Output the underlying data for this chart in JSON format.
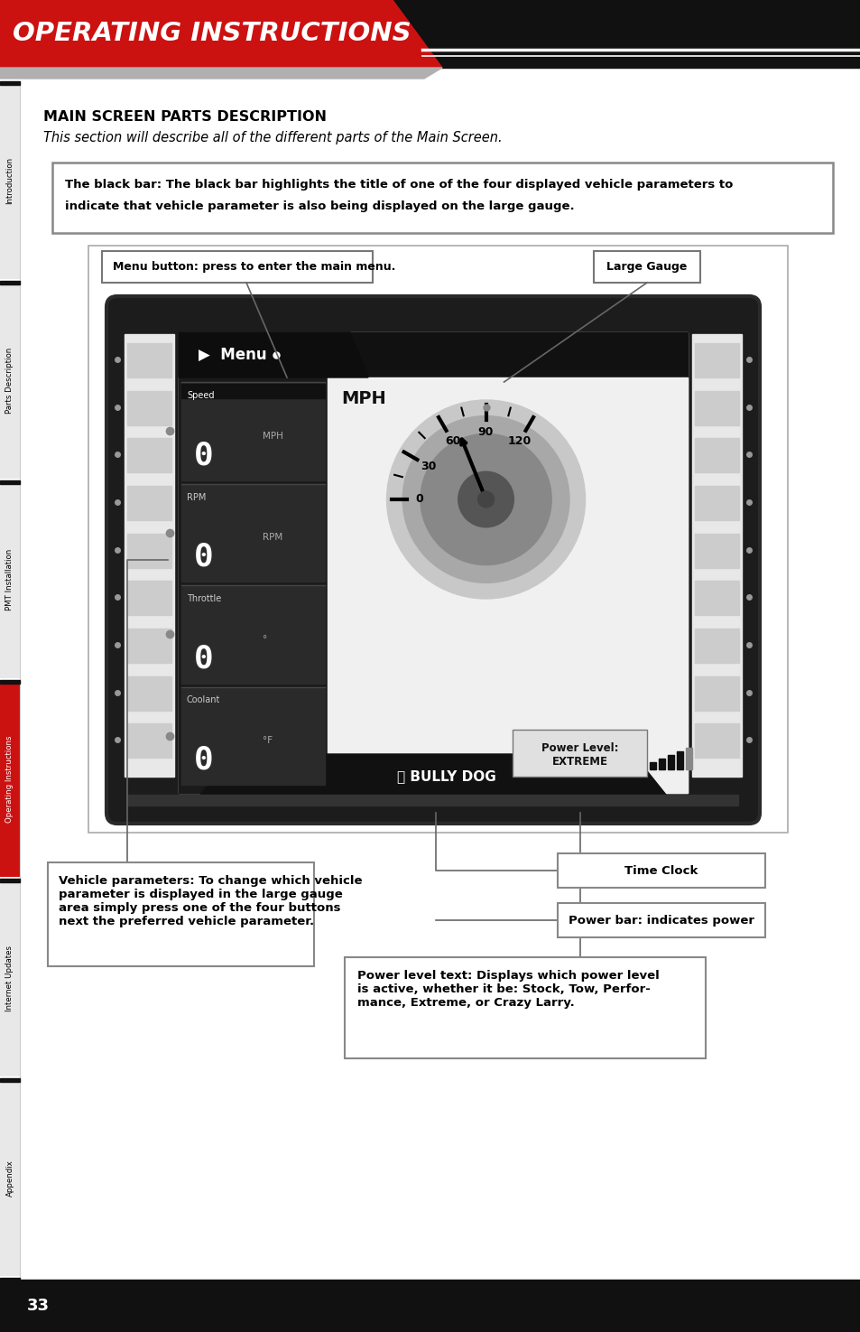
{
  "page_bg": "#ffffff",
  "header_red": "#cc1111",
  "header_black": "#111111",
  "header_text": "OPERATING INSTRUCTIONS",
  "sidebar_labels": [
    "Introduction",
    "Parts Description",
    "PMT Installation",
    "Operating Instructions",
    "Internet Updates",
    "Appendix"
  ],
  "sidebar_active": 3,
  "section_title": "MAIN SCREEN PARTS DESCRIPTION",
  "section_subtitle": "This section will describe all of the different parts of the Main Screen.",
  "black_bar_line1": "The black bar: The black bar highlights the title of one of the four displayed vehicle parameters to",
  "black_bar_line2": "indicate that vehicle parameter is also being displayed on the large gauge.",
  "menu_btn_text": "Menu button: press to enter the main menu.",
  "large_gauge_text": "Large Gauge",
  "vehicle_params_text": "Vehicle parameters: To change which vehicle\nparameter is displayed in the large gauge\narea simply press one of the four buttons\nnext the preferred vehicle parameter.",
  "time_clock_text": "Time Clock",
  "power_bar_text": "Power bar: indicates power",
  "power_level_text": "Power level text: Displays which power level\nis active, whether it be: Stock, Tow, Perfor-\nmance, Extreme, or Crazy Larry.",
  "page_number": "33",
  "footer_bg": "#111111",
  "footer_text_color": "#ffffff",
  "gauge_ticks": [
    [
      180,
      "0"
    ],
    [
      150,
      "30"
    ],
    [
      120,
      "60"
    ],
    [
      90,
      "90"
    ],
    [
      60,
      "120"
    ]
  ],
  "small_params": [
    [
      "Speed",
      "0",
      "MPH"
    ],
    [
      "RPM",
      "0",
      "RPM"
    ],
    [
      "Throttle",
      "0",
      "°"
    ],
    [
      "Coolant",
      "0",
      "°F"
    ]
  ]
}
